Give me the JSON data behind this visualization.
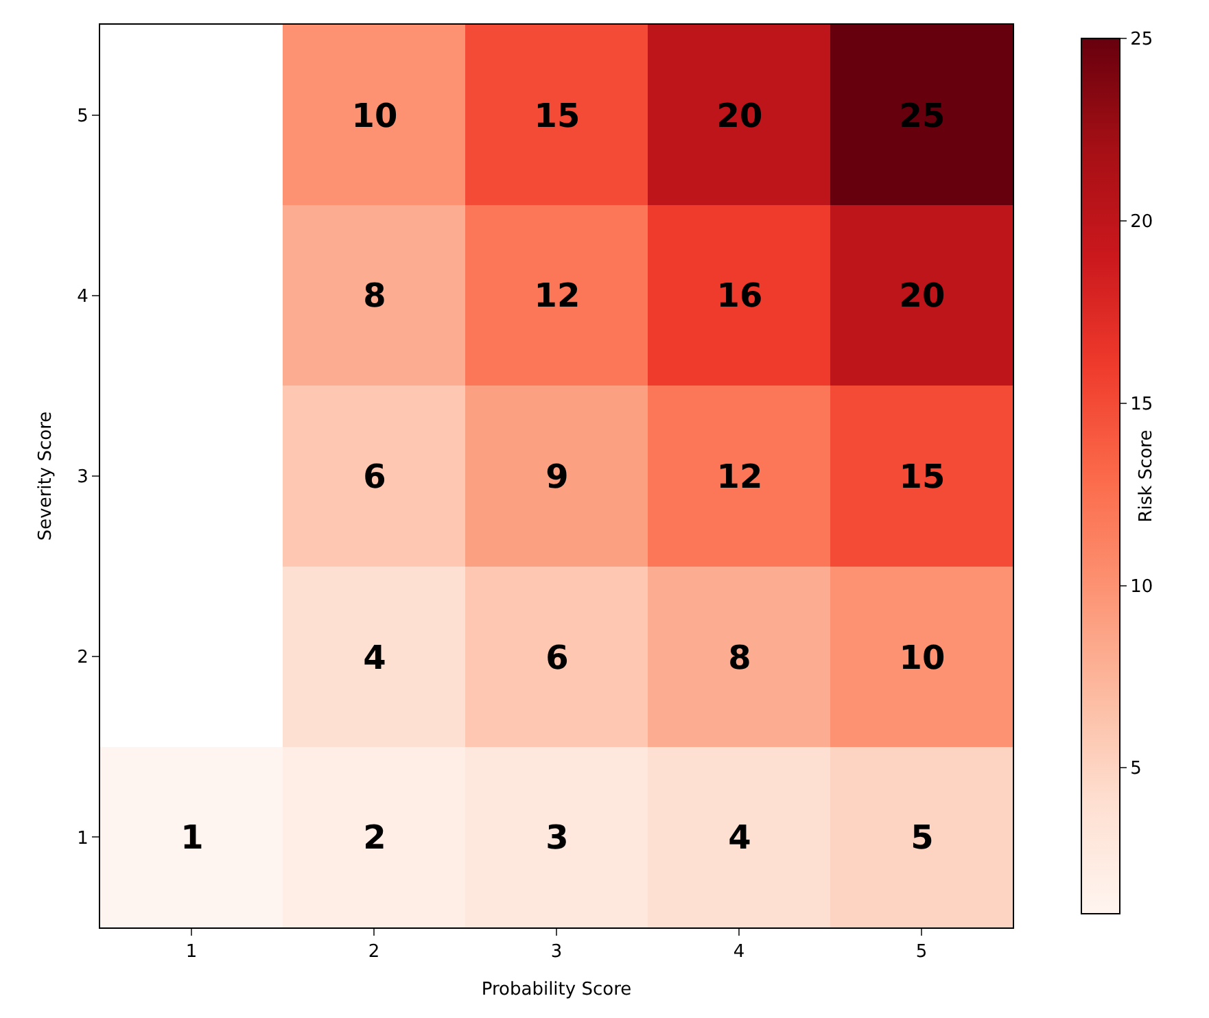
{
  "chart_data": {
    "type": "heatmap",
    "xlabel": "Probability Score",
    "ylabel": "Severity Score",
    "clabel": "Risk Score",
    "categories": [
      "1",
      "2",
      "3",
      "4",
      "5"
    ],
    "y_categories": [
      "5",
      "4",
      "3",
      "2",
      "1"
    ],
    "cells": [
      [
        null,
        10,
        15,
        20,
        25
      ],
      [
        null,
        8,
        12,
        16,
        20
      ],
      [
        null,
        6,
        9,
        12,
        15
      ],
      [
        null,
        4,
        6,
        8,
        10
      ],
      [
        1,
        2,
        3,
        4,
        5
      ]
    ],
    "clim": [
      1,
      25
    ],
    "cticks": [
      5,
      10,
      15,
      20,
      25
    ],
    "data_labels": true,
    "grid": false
  }
}
